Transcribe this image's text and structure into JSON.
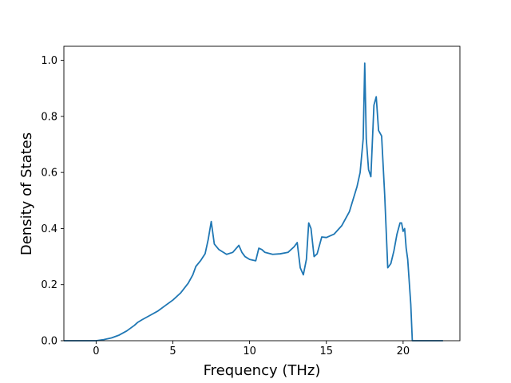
{
  "chart_data": {
    "type": "line",
    "title": "",
    "xlabel": "Frequency (THz)",
    "ylabel": "Density of States",
    "xlim": [
      -2.1,
      23.7
    ],
    "ylim": [
      0.0,
      1.05
    ],
    "x_ticks": [
      0,
      5,
      10,
      15,
      20
    ],
    "y_ticks": [
      0.0,
      0.2,
      0.4,
      0.6,
      0.8,
      1.0
    ],
    "x_tick_labels": [
      "0",
      "5",
      "10",
      "15",
      "20"
    ],
    "y_tick_labels": [
      "0.0",
      "0.2",
      "0.4",
      "0.6",
      "0.8",
      "1.0"
    ],
    "grid": false,
    "legend": "none",
    "series": [
      {
        "color": "#1f77b4",
        "x": [
          -2.1,
          0.0,
          0.5,
          1.0,
          1.5,
          2.0,
          2.5,
          2.7,
          3.0,
          3.5,
          4.0,
          4.5,
          5.0,
          5.5,
          6.0,
          6.3,
          6.5,
          6.8,
          7.1,
          7.3,
          7.5,
          7.7,
          8.0,
          8.5,
          8.9,
          9.3,
          9.5,
          9.7,
          10.0,
          10.4,
          10.6,
          10.8,
          11.0,
          11.5,
          12.0,
          12.5,
          12.9,
          13.1,
          13.3,
          13.5,
          13.7,
          13.85,
          14.0,
          14.2,
          14.4,
          14.7,
          15.0,
          15.5,
          16.0,
          16.5,
          17.0,
          17.2,
          17.4,
          17.5,
          17.6,
          17.75,
          17.9,
          18.1,
          18.25,
          18.4,
          18.6,
          18.8,
          19.0,
          19.2,
          19.4,
          19.6,
          19.8,
          19.9,
          20.0,
          20.1,
          20.2,
          20.3,
          20.5,
          20.6,
          21.0,
          22.6
        ],
        "y": [
          0.0,
          0.0,
          0.004,
          0.01,
          0.02,
          0.035,
          0.055,
          0.065,
          0.075,
          0.09,
          0.105,
          0.125,
          0.145,
          0.17,
          0.205,
          0.235,
          0.265,
          0.285,
          0.31,
          0.36,
          0.425,
          0.345,
          0.325,
          0.308,
          0.315,
          0.34,
          0.315,
          0.3,
          0.29,
          0.285,
          0.33,
          0.325,
          0.315,
          0.308,
          0.31,
          0.315,
          0.335,
          0.35,
          0.26,
          0.235,
          0.29,
          0.42,
          0.4,
          0.3,
          0.31,
          0.37,
          0.368,
          0.38,
          0.41,
          0.46,
          0.55,
          0.6,
          0.72,
          0.99,
          0.72,
          0.61,
          0.585,
          0.84,
          0.87,
          0.75,
          0.73,
          0.52,
          0.26,
          0.275,
          0.32,
          0.38,
          0.42,
          0.42,
          0.39,
          0.4,
          0.33,
          0.29,
          0.13,
          0.0,
          0.0,
          0.0
        ]
      }
    ]
  }
}
